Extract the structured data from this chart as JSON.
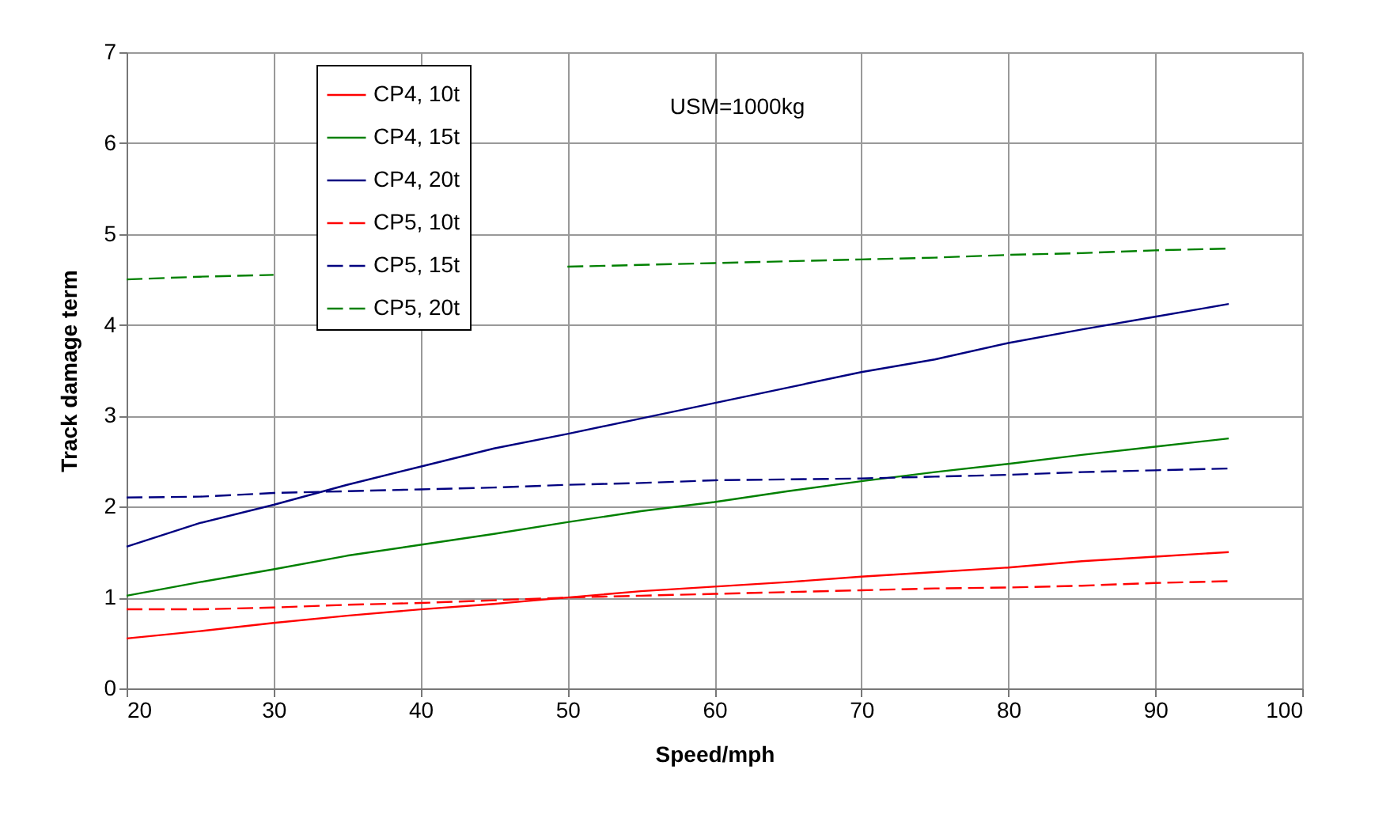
{
  "chart_data": {
    "type": "line",
    "xlabel": "Speed/mph",
    "ylabel": "Track damage term",
    "annotations": [
      "USM=1000kg"
    ],
    "x": [
      20,
      25,
      30,
      35,
      40,
      45,
      50,
      55,
      60,
      65,
      70,
      75,
      80,
      85,
      90,
      95
    ],
    "xlim": [
      20,
      100
    ],
    "xticks": [
      20,
      30,
      40,
      50,
      60,
      70,
      80,
      90,
      100
    ],
    "ylim": [
      0,
      7
    ],
    "yticks": [
      0,
      1,
      2,
      3,
      4,
      5,
      6,
      7
    ],
    "grid": true,
    "legend": "top left",
    "marker": "none",
    "series": [
      {
        "name": "CP4, 10t",
        "color": "#ff0000",
        "line_style": "solid",
        "values": [
          0.55,
          0.63,
          0.72,
          0.8,
          0.87,
          0.93,
          1.0,
          1.07,
          1.12,
          1.17,
          1.23,
          1.28,
          1.33,
          1.4,
          1.45,
          1.5
        ]
      },
      {
        "name": "CP4, 15t",
        "color": "#008000",
        "line_style": "solid",
        "values": [
          1.02,
          1.17,
          1.31,
          1.46,
          1.58,
          1.7,
          1.83,
          1.95,
          2.05,
          2.17,
          2.28,
          2.38,
          2.47,
          2.57,
          2.66,
          2.75
        ]
      },
      {
        "name": "CP4, 20t",
        "color": "#000080",
        "line_style": "solid",
        "values": [
          1.56,
          1.82,
          2.02,
          2.24,
          2.44,
          2.64,
          2.8,
          2.97,
          3.14,
          3.31,
          3.48,
          3.62,
          3.8,
          3.95,
          4.09,
          4.23
        ]
      },
      {
        "name": "CP5, 10t",
        "color": "#ff0000",
        "line_style": "dashed",
        "values": [
          0.87,
          0.87,
          0.89,
          0.92,
          0.94,
          0.97,
          1.0,
          1.02,
          1.04,
          1.06,
          1.08,
          1.1,
          1.11,
          1.13,
          1.16,
          1.18
        ]
      },
      {
        "name": "CP5, 15t",
        "color": "#000080",
        "line_style": "dashed",
        "values": [
          2.1,
          2.11,
          2.15,
          2.17,
          2.19,
          2.21,
          2.24,
          2.26,
          2.29,
          2.3,
          2.31,
          2.33,
          2.35,
          2.38,
          2.4,
          2.42
        ]
      },
      {
        "name": "CP5, 20t",
        "color": "#008000",
        "line_style": "dashed",
        "values": [
          4.5,
          4.53,
          4.55,
          null,
          null,
          null,
          4.64,
          4.66,
          4.68,
          4.7,
          4.72,
          4.74,
          4.77,
          4.79,
          4.82,
          4.84
        ]
      }
    ]
  }
}
